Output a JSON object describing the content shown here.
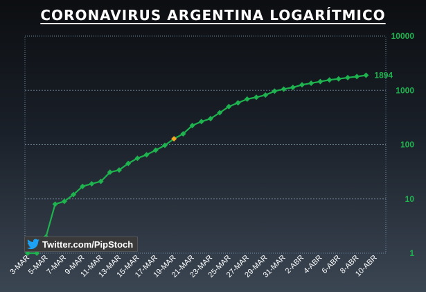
{
  "chart_data": {
    "type": "line",
    "title": "CORONAVIRUS ARGENTINA LOGARÍTMICO",
    "xlabel": "",
    "ylabel": "",
    "y_scale": "log",
    "ylim": [
      1,
      10000
    ],
    "y_ticks": [
      "1",
      "10",
      "100",
      "1000",
      "10000"
    ],
    "x_tick_labels": [
      "3-MAR",
      "5-MAR",
      "7-MAR",
      "9-MAR",
      "11-MAR",
      "13-MAR",
      "15-MAR",
      "17-MAR",
      "19-MAR",
      "21-MAR",
      "23-MAR",
      "25-MAR",
      "27-MAR",
      "29-MAR",
      "31-MAR",
      "2-ABR",
      "4-ABR",
      "6-ABR",
      "8-ABR",
      "10-ABR"
    ],
    "x": [
      "3-MAR",
      "4-MAR",
      "5-MAR",
      "6-MAR",
      "7-MAR",
      "8-MAR",
      "9-MAR",
      "10-MAR",
      "11-MAR",
      "12-MAR",
      "13-MAR",
      "14-MAR",
      "15-MAR",
      "16-MAR",
      "17-MAR",
      "18-MAR",
      "19-MAR",
      "20-MAR",
      "21-MAR",
      "22-MAR",
      "23-MAR",
      "24-MAR",
      "25-MAR",
      "26-MAR",
      "27-MAR",
      "28-MAR",
      "29-MAR",
      "30-MAR",
      "31-MAR",
      "1-ABR",
      "2-ABR",
      "3-ABR",
      "4-ABR",
      "5-ABR",
      "6-ABR",
      "7-ABR",
      "8-ABR",
      "9-ABR"
    ],
    "series": [
      {
        "values": [
          1,
          1,
          2,
          8,
          9,
          12,
          17,
          19,
          21,
          31,
          34,
          45,
          56,
          65,
          79,
          97,
          128,
          158,
          225,
          266,
          301,
          387,
          502,
          589,
          690,
          745,
          820,
          966,
          1054,
          1133,
          1265,
          1353,
          1451,
          1554,
          1628,
          1715,
          1795,
          1894
        ],
        "color": "#1fb34f",
        "highlight_index": 16,
        "highlight_color": "#f5a623",
        "end_label": "1894"
      }
    ],
    "grid": true,
    "legend": "none"
  },
  "watermark": {
    "icon": "twitter-bird-icon",
    "text": "Twitter.com/PipStoch"
  },
  "colors": {
    "line": "#1fb34f",
    "marker": "#1fb34f",
    "highlight": "#f5a623",
    "axis_text": "#1fb34f"
  }
}
